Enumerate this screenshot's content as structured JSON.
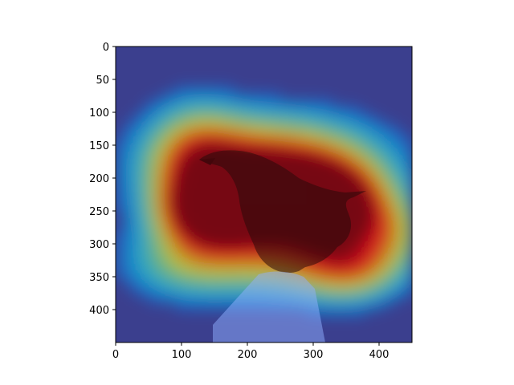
{
  "chart_data": {
    "type": "heatmap",
    "title": "",
    "xlabel": "",
    "ylabel": "",
    "xlim": [
      0,
      450
    ],
    "ylim": [
      450,
      0
    ],
    "x_ticks": [
      0,
      100,
      200,
      300,
      400
    ],
    "y_ticks": [
      0,
      50,
      100,
      150,
      200,
      250,
      300,
      350,
      400
    ],
    "x_tick_labels": [
      "0",
      "100",
      "200",
      "300",
      "400"
    ],
    "y_tick_labels": [
      "0",
      "50",
      "100",
      "150",
      "200",
      "250",
      "300",
      "350",
      "400"
    ],
    "colormap": "jet",
    "background_color": "#3b3f8e",
    "grid": false,
    "hotspots": [
      {
        "x": 240,
        "y": 225,
        "sx": 95,
        "sy": 48,
        "intensity": 1.0
      },
      {
        "x": 150,
        "y": 255,
        "sx": 55,
        "sy": 35,
        "intensity": 0.85
      },
      {
        "x": 330,
        "y": 240,
        "sx": 50,
        "sy": 40,
        "intensity": 0.8
      },
      {
        "x": 230,
        "y": 165,
        "sx": 120,
        "sy": 50,
        "intensity": 0.55
      },
      {
        "x": 120,
        "y": 170,
        "sx": 50,
        "sy": 60,
        "intensity": 0.45
      },
      {
        "x": 280,
        "y": 320,
        "sx": 90,
        "sy": 45,
        "intensity": 0.55
      },
      {
        "x": 110,
        "y": 330,
        "sx": 70,
        "sy": 40,
        "intensity": 0.4
      },
      {
        "x": 420,
        "y": 280,
        "sx": 40,
        "sy": 40,
        "intensity": 0.35
      },
      {
        "x": 360,
        "y": 340,
        "sx": 50,
        "sy": 35,
        "intensity": 0.4
      }
    ]
  }
}
